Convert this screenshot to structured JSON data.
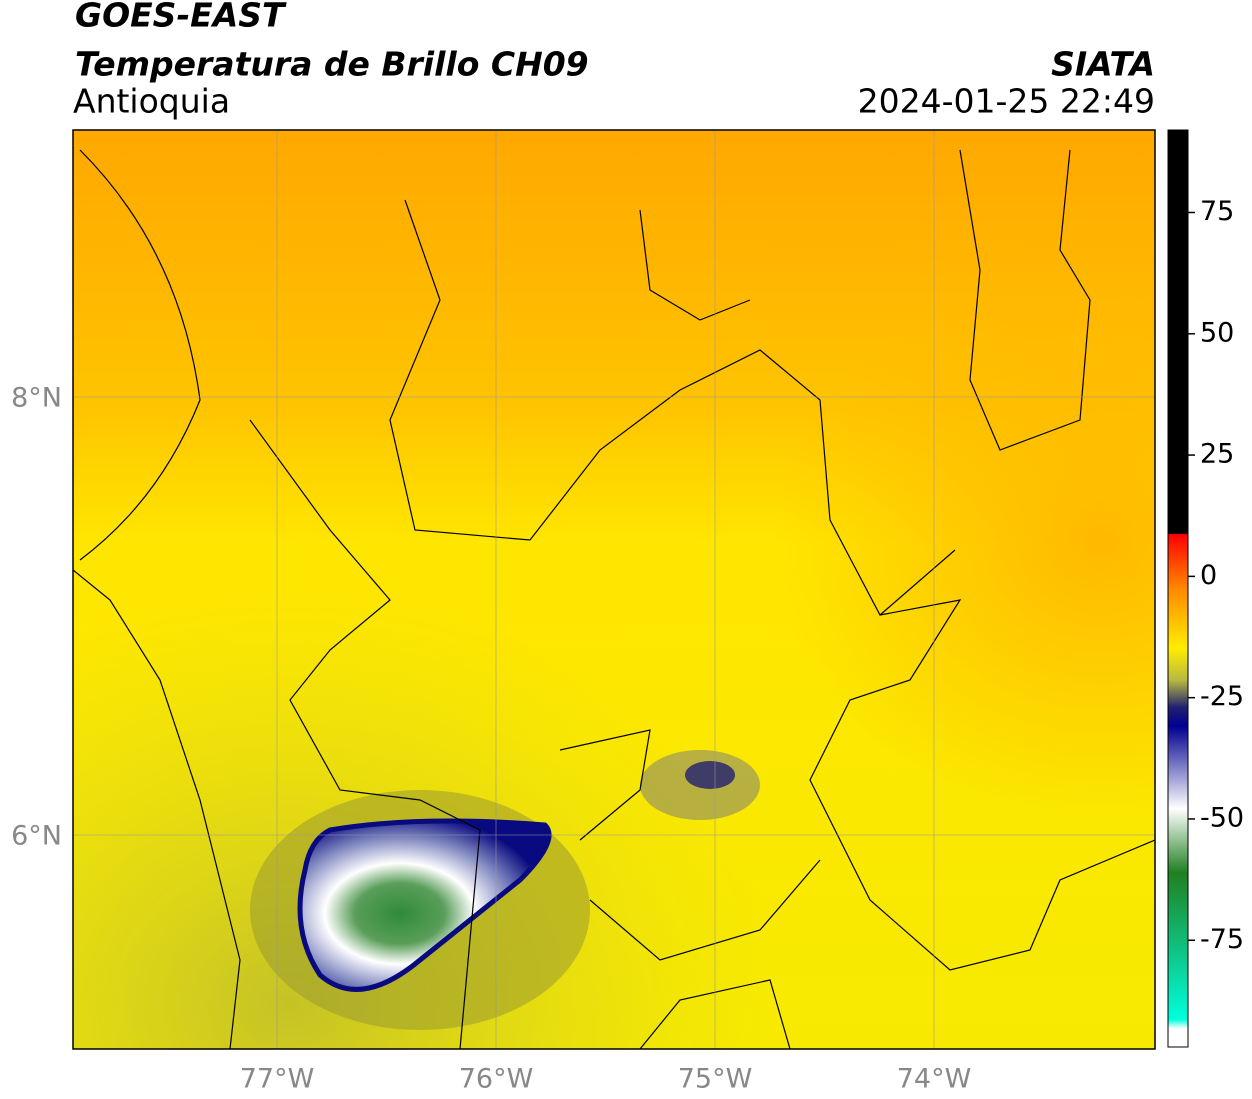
{
  "header": {
    "title": "GOES-EAST",
    "subtitle": "Temperatura de Brillo CH09",
    "region": "Antioquia",
    "source": "SIATA",
    "timestamp": "2024-01-25 22:49"
  },
  "map": {
    "lon_labels": [
      "77°W",
      "76°W",
      "75°W",
      "74°W"
    ],
    "lat_labels": [
      "8°N",
      "6°N"
    ]
  },
  "colorbar": {
    "lim": [
      -97,
      92
    ],
    "ticks": [
      75,
      50,
      25,
      0,
      -25,
      -50,
      -75
    ]
  }
}
